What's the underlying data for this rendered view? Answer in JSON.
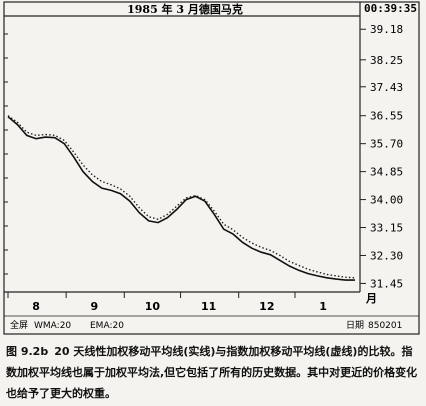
{
  "chart_data": {
    "type": "line",
    "title": "1985 年 3 月德国马克",
    "corner_time": "00:39:35",
    "yticks": [
      "39.18",
      "38.25",
      "37.43",
      "36.55",
      "35.70",
      "34.85",
      "34.00",
      "33.15",
      "32.30",
      "31.45"
    ],
    "ylim": [
      31.25,
      39.4
    ],
    "x_month_labels": [
      "8",
      "9",
      "10",
      "11",
      "12",
      "1"
    ],
    "x_unit": "月",
    "x_range_days": [
      0,
      185
    ],
    "grid": false,
    "series": [
      {
        "name": "WMA:20",
        "style": "solid",
        "x": [
          0,
          5,
          10,
          15,
          20,
          25,
          30,
          35,
          40,
          45,
          50,
          55,
          60,
          65,
          70,
          75,
          80,
          85,
          90,
          95,
          100,
          105,
          110,
          115,
          120,
          125,
          130,
          135,
          140,
          145,
          150,
          155,
          160,
          165,
          170,
          175,
          180,
          185
        ],
        "values": [
          36.52,
          36.28,
          35.95,
          35.85,
          35.9,
          35.88,
          35.7,
          35.3,
          34.85,
          34.55,
          34.35,
          34.28,
          34.18,
          33.95,
          33.6,
          33.35,
          33.3,
          33.45,
          33.7,
          34.0,
          34.1,
          33.95,
          33.55,
          33.1,
          32.95,
          32.7,
          32.52,
          32.4,
          32.32,
          32.15,
          31.98,
          31.85,
          31.75,
          31.68,
          31.62,
          31.58,
          31.55,
          31.55
        ]
      },
      {
        "name": "EMA:20",
        "style": "dotted",
        "x": [
          0,
          5,
          10,
          15,
          20,
          25,
          30,
          35,
          40,
          45,
          50,
          55,
          60,
          65,
          70,
          75,
          80,
          85,
          90,
          95,
          100,
          105,
          110,
          115,
          120,
          125,
          130,
          135,
          140,
          145,
          150,
          155,
          160,
          165,
          170,
          175,
          180,
          185
        ],
        "values": [
          36.55,
          36.35,
          36.05,
          35.95,
          35.98,
          35.95,
          35.8,
          35.45,
          35.05,
          34.75,
          34.55,
          34.45,
          34.32,
          34.1,
          33.75,
          33.48,
          33.4,
          33.55,
          33.8,
          34.05,
          34.12,
          34.0,
          33.65,
          33.25,
          33.08,
          32.85,
          32.68,
          32.55,
          32.45,
          32.3,
          32.12,
          32.0,
          31.88,
          31.8,
          31.72,
          31.68,
          31.64,
          31.62
        ]
      }
    ],
    "legend": {
      "prefix": "全屏",
      "items": [
        "WMA:20",
        "EMA:20"
      ],
      "date_label": "日期",
      "date_value": "850201"
    }
  },
  "caption": {
    "fig_no": "图 9.2b",
    "text": "20 天线性加权移动平均线(实线)与指数加权移动平均线(虚线)的比较。指数加权平均线也属于加权平均法,但它包括了所有的历史数据。其中对更近的价格变化也给予了更大的权重。"
  }
}
